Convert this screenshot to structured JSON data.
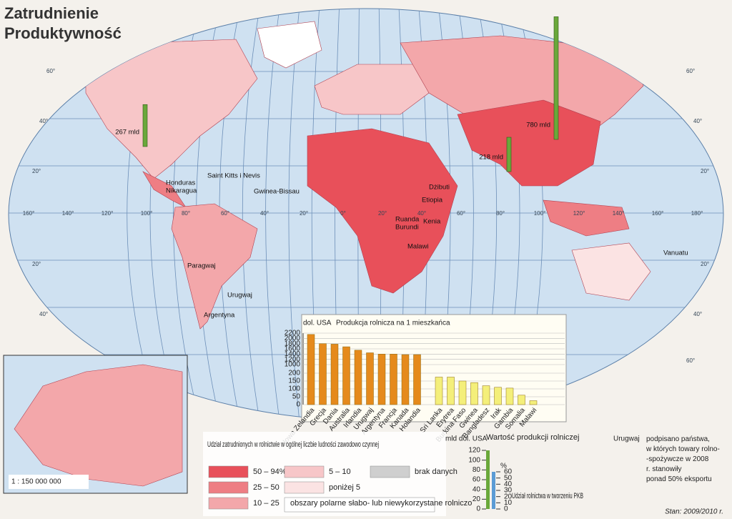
{
  "header": {
    "title": [
      "Zatrudnienie",
      "Produktywność"
    ]
  },
  "graticule": {
    "longitudes": [
      "160°",
      "140°",
      "120°",
      "100°",
      "80°",
      "60°",
      "40°",
      "20°",
      "0°",
      "20°",
      "40°",
      "60°",
      "80°",
      "100°",
      "120°",
      "140°",
      "160°",
      "180°"
    ],
    "latitudes": [
      "60°",
      "40°",
      "20°",
      "20°",
      "40°",
      "60°"
    ]
  },
  "map_labels": [
    "Saint Kitts i Nevis",
    "Honduras",
    "Nikaragua",
    "Gwinea-Bissau",
    "Paragwaj",
    "Urugwaj",
    "Argentyna",
    "Dżibuti",
    "Etiopia",
    "Ruanda",
    "Burundi",
    "Kenia",
    "Malawi",
    "Vanuatu"
  ],
  "map_values": {
    "labels": [
      "267 mld",
      "780 mld",
      "218 mld"
    ],
    "values": [
      267,
      780,
      218
    ],
    "color": "#6aa83a"
  },
  "scale": "1 : 150 000 000",
  "chart_data": {
    "type": "bar",
    "title": "Produkcja rolnicza na 1 mieszkańca",
    "unit": "dol. USA",
    "categories": [
      "Nowa Zelandia",
      "Grecja",
      "Dania",
      "Australia",
      "Irlandia",
      "Urugwaj",
      "Argentyna",
      "Francja",
      "Kanada",
      "Holandia",
      "Sri Lanka",
      "Erytrea",
      "Burkina Faso",
      "Gwinea",
      "Bangladesz",
      "Irak",
      "Gambia",
      "Somalia",
      "Malawi"
    ],
    "values": [
      2150,
      1800,
      1780,
      1680,
      1550,
      1450,
      1400,
      1400,
      1380,
      1380,
      175,
      175,
      150,
      140,
      120,
      110,
      105,
      60,
      25
    ],
    "ylim": [
      0,
      2200
    ],
    "axis_break": [
      200,
      1000
    ],
    "yticks": [
      0,
      50,
      100,
      150,
      200,
      1000,
      1200,
      1400,
      1600,
      1800,
      2000,
      2200
    ],
    "bar_colors": {
      "above_break": "#e58a1c",
      "below_break": "#f4ef7a"
    }
  },
  "legend_employment": {
    "title": "Udział zatrudnionych w rolnictwie w ogólnej liczbie ludności zawodowo czynnej",
    "items": [
      {
        "label": "50 – 94%",
        "color": "#e8505a"
      },
      {
        "label": "25 – 50",
        "color": "#ee7e84"
      },
      {
        "label": "10 – 25",
        "color": "#f3a7aa"
      },
      {
        "label": "5 – 10",
        "color": "#f7c6c8"
      },
      {
        "label": "poniżej 5",
        "color": "#fbe3e3"
      },
      {
        "label": "brak danych",
        "color": "#cfcfcf"
      },
      {
        "label": "obszary polarne słabo- lub niewykorzystane rolniczo",
        "color": "#ffffff"
      }
    ]
  },
  "legend_production": {
    "unit": "mld dol. USA",
    "title": "Wartość produkcji rolniczej",
    "ticks": [
      0,
      20,
      40,
      60,
      80,
      100,
      120
    ],
    "color": "#6aa83a",
    "pkb_unit": "%",
    "pkb_title": "Udział rolnictwa w tworzeniu PKB",
    "pkb_ticks": [
      0,
      10,
      20,
      30,
      40,
      50,
      60
    ],
    "pkb_color": "#5b9bd5"
  },
  "legend_export": {
    "example": "Urugwaj",
    "text": "podpisano państwa, w których towary rolno- -spożywcze w 2008 r. stanowiły ponad 50% eksportu"
  },
  "footer": {
    "status": "Stan: 2009/2010 r."
  }
}
